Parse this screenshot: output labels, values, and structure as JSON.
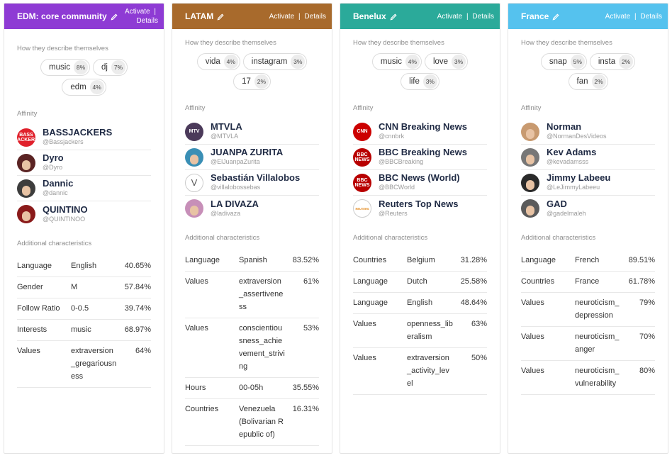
{
  "labels": {
    "describe": "How they describe themselves",
    "affinity": "Affinity",
    "additional": "Additional characteristics",
    "activate": "Activate",
    "separator": "|",
    "details": "Details"
  },
  "colors": {
    "edm": "#8e3bd4",
    "latam": "#a86a2c",
    "benelux": "#2baa9a",
    "france": "#55c2ee"
  },
  "cards": [
    {
      "title": "EDM: core community",
      "tags": [
        {
          "label": "music",
          "pct": "8%"
        },
        {
          "label": "dj",
          "pct": "7%"
        },
        {
          "label": "edm",
          "pct": "4%"
        }
      ],
      "affinity": [
        {
          "name": "BASSJACKERS",
          "handle": "@Bassjackers",
          "icon": "bassjackers-logo-icon",
          "avatar": "BASS JACKERS"
        },
        {
          "name": "Dyro",
          "handle": "@Dyro",
          "icon": "dyro-avatar-icon",
          "avatar": ""
        },
        {
          "name": "Dannic",
          "handle": "@dannic",
          "icon": "dannic-avatar-icon",
          "avatar": ""
        },
        {
          "name": "QUINTINO",
          "handle": "@QUINTINOO",
          "icon": "quintino-avatar-icon",
          "avatar": ""
        }
      ],
      "characteristics": [
        {
          "key": "Language",
          "value": "English",
          "pct": "40.65%"
        },
        {
          "key": "Gender",
          "value": "M",
          "pct": "57.84%"
        },
        {
          "key": "Follow Ratio",
          "value": "0-0.5",
          "pct": "39.74%"
        },
        {
          "key": "Interests",
          "value": "music",
          "pct": "68.97%"
        },
        {
          "key": "Values",
          "value": "extraversion_gregariousness",
          "pct": "64%"
        }
      ]
    },
    {
      "title": "LATAM",
      "tags": [
        {
          "label": "vida",
          "pct": "4%"
        },
        {
          "label": "instagram",
          "pct": "3%"
        },
        {
          "label": "17",
          "pct": "2%"
        }
      ],
      "affinity": [
        {
          "name": "MTVLA",
          "handle": "@MTVLA",
          "icon": "mtv-logo-icon",
          "avatar": "MTV"
        },
        {
          "name": "JUANPA ZURITA",
          "handle": "@ElJuanpaZurita",
          "icon": "juanpa-avatar-icon",
          "avatar": ""
        },
        {
          "name": "Sebastián Villalobos",
          "handle": "@villalobossebas",
          "icon": "villalobos-logo-icon",
          "avatar": "V"
        },
        {
          "name": "LA DIVAZA",
          "handle": "@ladivaza",
          "icon": "divaza-avatar-icon",
          "avatar": ""
        }
      ],
      "characteristics": [
        {
          "key": "Language",
          "value": "Spanish",
          "pct": "83.52%"
        },
        {
          "key": "Values",
          "value": "extraversion_assertiveness",
          "pct": "61%"
        },
        {
          "key": "Values",
          "value": "conscientiousness_achievement_striving",
          "pct": "53%"
        },
        {
          "key": "Hours",
          "value": "00-05h",
          "pct": "35.55%"
        },
        {
          "key": "Countries",
          "value": "Venezuela (Bolivarian Republic of)",
          "pct": "16.31%"
        }
      ]
    },
    {
      "title": "Benelux",
      "tags": [
        {
          "label": "music",
          "pct": "4%"
        },
        {
          "label": "love",
          "pct": "3%"
        },
        {
          "label": "life",
          "pct": "3%"
        }
      ],
      "affinity": [
        {
          "name": "CNN Breaking News",
          "handle": "@cnnbrk",
          "icon": "cnn-logo-icon",
          "avatar": "CNN"
        },
        {
          "name": "BBC Breaking News",
          "handle": "@BBCBreaking",
          "icon": "bbc-news-logo-icon",
          "avatar": "BBC NEWS"
        },
        {
          "name": "BBC News (World)",
          "handle": "@BBCWorld",
          "icon": "bbc-world-logo-icon",
          "avatar": "BBC NEWS"
        },
        {
          "name": "Reuters Top News",
          "handle": "@Reuters",
          "icon": "reuters-logo-icon",
          "avatar": "REUTERS"
        }
      ],
      "characteristics": [
        {
          "key": "Countries",
          "value": "Belgium",
          "pct": "31.28%"
        },
        {
          "key": "Language",
          "value": "Dutch",
          "pct": "25.58%"
        },
        {
          "key": "Language",
          "value": "English",
          "pct": "48.64%"
        },
        {
          "key": "Values",
          "value": "openness_liberalism",
          "pct": "63%"
        },
        {
          "key": "Values",
          "value": "extraversion_activity_level",
          "pct": "50%"
        }
      ]
    },
    {
      "title": "France",
      "tags": [
        {
          "label": "snap",
          "pct": "5%"
        },
        {
          "label": "insta",
          "pct": "2%"
        },
        {
          "label": "fan",
          "pct": "2%"
        }
      ],
      "affinity": [
        {
          "name": "Norman",
          "handle": "@NormanDesVideos",
          "icon": "norman-avatar-icon",
          "avatar": ""
        },
        {
          "name": "Kev Adams",
          "handle": "@kevadamsss",
          "icon": "kev-adams-avatar-icon",
          "avatar": ""
        },
        {
          "name": "Jimmy Labeeu",
          "handle": "@LeJimmyLabeeu",
          "icon": "jimmy-avatar-icon",
          "avatar": ""
        },
        {
          "name": "GAD",
          "handle": "@gadelmaleh",
          "icon": "gad-avatar-icon",
          "avatar": ""
        }
      ],
      "characteristics": [
        {
          "key": "Language",
          "value": "French",
          "pct": "89.51%"
        },
        {
          "key": "Countries",
          "value": "France",
          "pct": "61.78%"
        },
        {
          "key": "Values",
          "value": "neuroticism_depression",
          "pct": "79%"
        },
        {
          "key": "Values",
          "value": "neuroticism_anger",
          "pct": "70%"
        },
        {
          "key": "Values",
          "value": "neuroticism_vulnerability",
          "pct": "80%"
        }
      ]
    }
  ]
}
